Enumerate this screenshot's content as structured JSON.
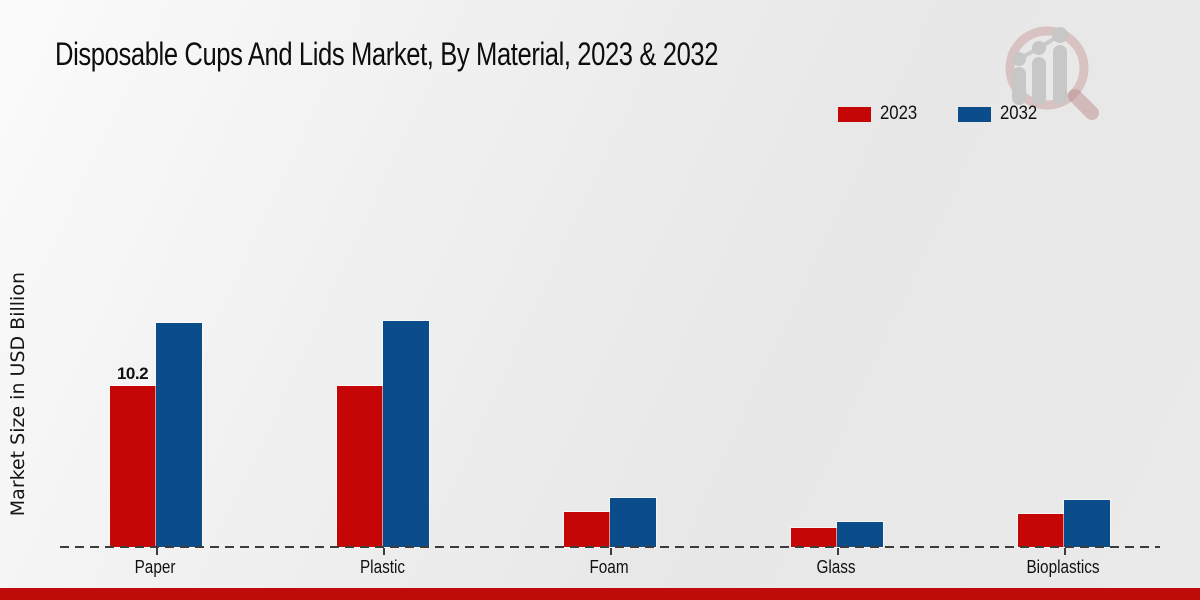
{
  "page_title": "Disposable Cups And Lids Market, By Material, 2023 & 2032",
  "branding": {
    "watermark": "magnifier-growth-chart-logo",
    "bottom_bar_color": "#c00b0b"
  },
  "chart_data": {
    "type": "bar",
    "title": "Disposable Cups And Lids Market, By Material, 2023 & 2032",
    "categories": [
      "Paper",
      "Plastic",
      "Foam",
      "Glass",
      "Bioplastics"
    ],
    "series": [
      {
        "name": "2023",
        "color": "#c50606",
        "values": [
          10.2,
          10.2,
          2.2,
          1.2,
          2.1
        ]
      },
      {
        "name": "2032",
        "color": "#0a4d8a",
        "values": [
          14.2,
          14.3,
          3.1,
          1.6,
          3.0
        ]
      }
    ],
    "bar_labels": [
      {
        "series": "2023",
        "category": "Paper",
        "text": "10.2"
      }
    ],
    "xlabel": "",
    "ylabel": "Market Size in USD Billion",
    "ylim": [
      0,
      17
    ],
    "grid": false,
    "axis_style": "dashed-baseline-only",
    "legend_position": "top-right"
  }
}
